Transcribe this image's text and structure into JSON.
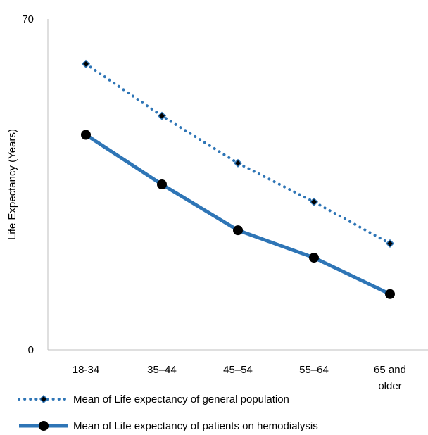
{
  "chart_data": {
    "type": "line",
    "title": "",
    "xlabel": "",
    "ylabel": "Life Expectancy (Years)",
    "ylim": [
      0,
      70
    ],
    "yticks": [
      "0",
      "70"
    ],
    "categories": [
      "18-34",
      "35–44",
      "45–54",
      "55–64",
      "65 and older"
    ],
    "series": [
      {
        "name": "Mean of Life expectancy of general population",
        "values": [
          60.5,
          49.5,
          39.5,
          31.3,
          22.5
        ],
        "style": "dotted",
        "marker": "diamond",
        "color": "#2e75b6",
        "marker_color": "#000000"
      },
      {
        "name": "Mean of Life expectancy of  patients on hemodialysis",
        "values": [
          45.5,
          35.0,
          25.3,
          19.5,
          11.8
        ],
        "style": "solid",
        "marker": "circle",
        "color": "#2e75b6",
        "marker_color": "#000000"
      }
    ],
    "grid": false,
    "legend_position": "bottom"
  }
}
